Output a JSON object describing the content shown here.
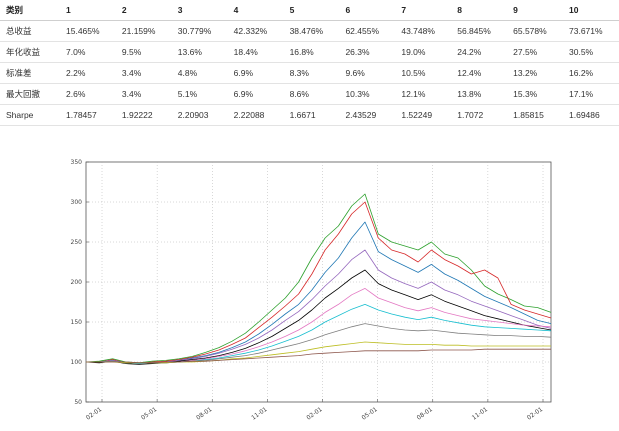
{
  "table": {
    "columns": [
      "类别",
      "1",
      "2",
      "3",
      "4",
      "5",
      "6",
      "7",
      "8",
      "9",
      "10"
    ],
    "rows": [
      {
        "label": "总收益",
        "values": [
          "15.465%",
          "21.159%",
          "30.779%",
          "42.332%",
          "38.476%",
          "62.455%",
          "43.748%",
          "56.845%",
          "65.578%",
          "73.671%"
        ]
      },
      {
        "label": "年化收益",
        "values": [
          "7.0%",
          "9.5%",
          "13.6%",
          "18.4%",
          "16.8%",
          "26.3%",
          "19.0%",
          "24.2%",
          "27.5%",
          "30.5%"
        ]
      },
      {
        "label": "标准差",
        "values": [
          "2.2%",
          "3.4%",
          "4.8%",
          "6.9%",
          "8.3%",
          "9.6%",
          "10.5%",
          "12.4%",
          "13.2%",
          "16.2%"
        ]
      },
      {
        "label": "最大回撤",
        "values": [
          "2.6%",
          "3.4%",
          "5.1%",
          "6.9%",
          "8.6%",
          "10.3%",
          "12.1%",
          "13.8%",
          "15.3%",
          "17.1%"
        ]
      },
      {
        "label": "Sharpe",
        "values": [
          "1.78457",
          "1.92222",
          "2.20903",
          "2.22088",
          "1.6671",
          "2.43529",
          "1.52249",
          "1.7072",
          "1.85815",
          "1.69486"
        ]
      }
    ]
  },
  "chart_data": {
    "type": "line",
    "title": "",
    "xlabel": "",
    "ylabel": "",
    "ylim": [
      50,
      350
    ],
    "yticks": [
      50,
      100,
      150,
      200,
      250,
      300,
      350
    ],
    "xticks": [
      "02-01",
      "05-01",
      "08-01",
      "11-01",
      "02-01",
      "05-01",
      "08-01",
      "11-01",
      "02-01"
    ],
    "grid": true,
    "x": [
      0,
      1,
      2,
      3,
      4,
      5,
      6,
      7,
      8,
      9,
      10,
      11,
      12,
      13,
      14,
      15,
      16,
      17,
      18,
      19,
      20,
      21,
      22,
      23,
      24,
      25,
      26,
      27,
      28,
      29,
      30,
      31,
      32,
      33,
      34,
      35
    ],
    "series": [
      {
        "color": "#2ca02c",
        "values": [
          100,
          101,
          104,
          100,
          99,
          101,
          102,
          104,
          107,
          112,
          118,
          126,
          136,
          150,
          165,
          180,
          200,
          230,
          255,
          270,
          295,
          310,
          260,
          250,
          245,
          240,
          250,
          235,
          230,
          215,
          195,
          185,
          178,
          170,
          168,
          162
        ]
      },
      {
        "color": "#d62728",
        "values": [
          100,
          100,
          103,
          99,
          98,
          100,
          101,
          103,
          106,
          110,
          115,
          122,
          130,
          143,
          156,
          170,
          185,
          210,
          240,
          260,
          285,
          300,
          255,
          240,
          235,
          225,
          240,
          228,
          220,
          210,
          215,
          205,
          172,
          165,
          160,
          155
        ]
      },
      {
        "color": "#1f77b4",
        "values": [
          100,
          100,
          102,
          99,
          98,
          99,
          100,
          102,
          105,
          108,
          112,
          118,
          125,
          135,
          147,
          160,
          172,
          190,
          212,
          230,
          255,
          275,
          238,
          228,
          220,
          212,
          222,
          210,
          202,
          192,
          182,
          175,
          168,
          160,
          152,
          148
        ]
      },
      {
        "color": "#9467bd",
        "values": [
          100,
          100,
          102,
          99,
          98,
          99,
          100,
          102,
          104,
          107,
          111,
          116,
          122,
          130,
          140,
          152,
          163,
          178,
          195,
          210,
          228,
          240,
          215,
          205,
          198,
          192,
          200,
          190,
          184,
          176,
          170,
          164,
          158,
          152,
          146,
          142
        ]
      },
      {
        "color": "#000000",
        "values": [
          100,
          99,
          101,
          98,
          97,
          98,
          99,
          101,
          103,
          105,
          108,
          112,
          117,
          124,
          132,
          142,
          152,
          165,
          180,
          192,
          205,
          215,
          198,
          190,
          184,
          178,
          184,
          176,
          170,
          164,
          158,
          154,
          150,
          146,
          143,
          140
        ]
      },
      {
        "color": "#e377c2",
        "values": [
          100,
          100,
          101,
          99,
          98,
          99,
          99,
          100,
          102,
          104,
          107,
          110,
          114,
          119,
          125,
          132,
          140,
          150,
          162,
          172,
          184,
          192,
          180,
          174,
          168,
          164,
          168,
          162,
          158,
          154,
          152,
          150,
          148,
          146,
          145,
          144
        ]
      },
      {
        "color": "#17becf",
        "values": [
          100,
          100,
          101,
          99,
          98,
          99,
          99,
          100,
          101,
          103,
          105,
          108,
          111,
          115,
          120,
          126,
          132,
          140,
          150,
          158,
          166,
          172,
          165,
          160,
          156,
          153,
          156,
          152,
          149,
          146,
          144,
          143,
          142,
          141,
          140,
          139
        ]
      },
      {
        "color": "#7f7f7f",
        "values": [
          100,
          100,
          101,
          99,
          99,
          99,
          99,
          100,
          101,
          102,
          104,
          106,
          108,
          111,
          115,
          119,
          123,
          128,
          134,
          139,
          144,
          148,
          145,
          142,
          140,
          139,
          140,
          138,
          136,
          135,
          134,
          133,
          133,
          132,
          132,
          131
        ]
      },
      {
        "color": "#bcbd22",
        "values": [
          100,
          100,
          100,
          99,
          99,
          99,
          99,
          100,
          100,
          101,
          102,
          104,
          105,
          107,
          109,
          111,
          113,
          116,
          119,
          121,
          123,
          125,
          124,
          123,
          122,
          122,
          122,
          121,
          121,
          120,
          120,
          120,
          120,
          120,
          120,
          120
        ]
      },
      {
        "color": "#8c564b",
        "values": [
          100,
          100,
          100,
          100,
          99,
          99,
          100,
          100,
          101,
          101,
          102,
          103,
          104,
          105,
          106,
          107,
          108,
          110,
          111,
          112,
          113,
          114,
          114,
          114,
          114,
          114,
          115,
          115,
          115,
          115,
          116,
          116,
          116,
          116,
          116,
          116
        ]
      }
    ]
  }
}
